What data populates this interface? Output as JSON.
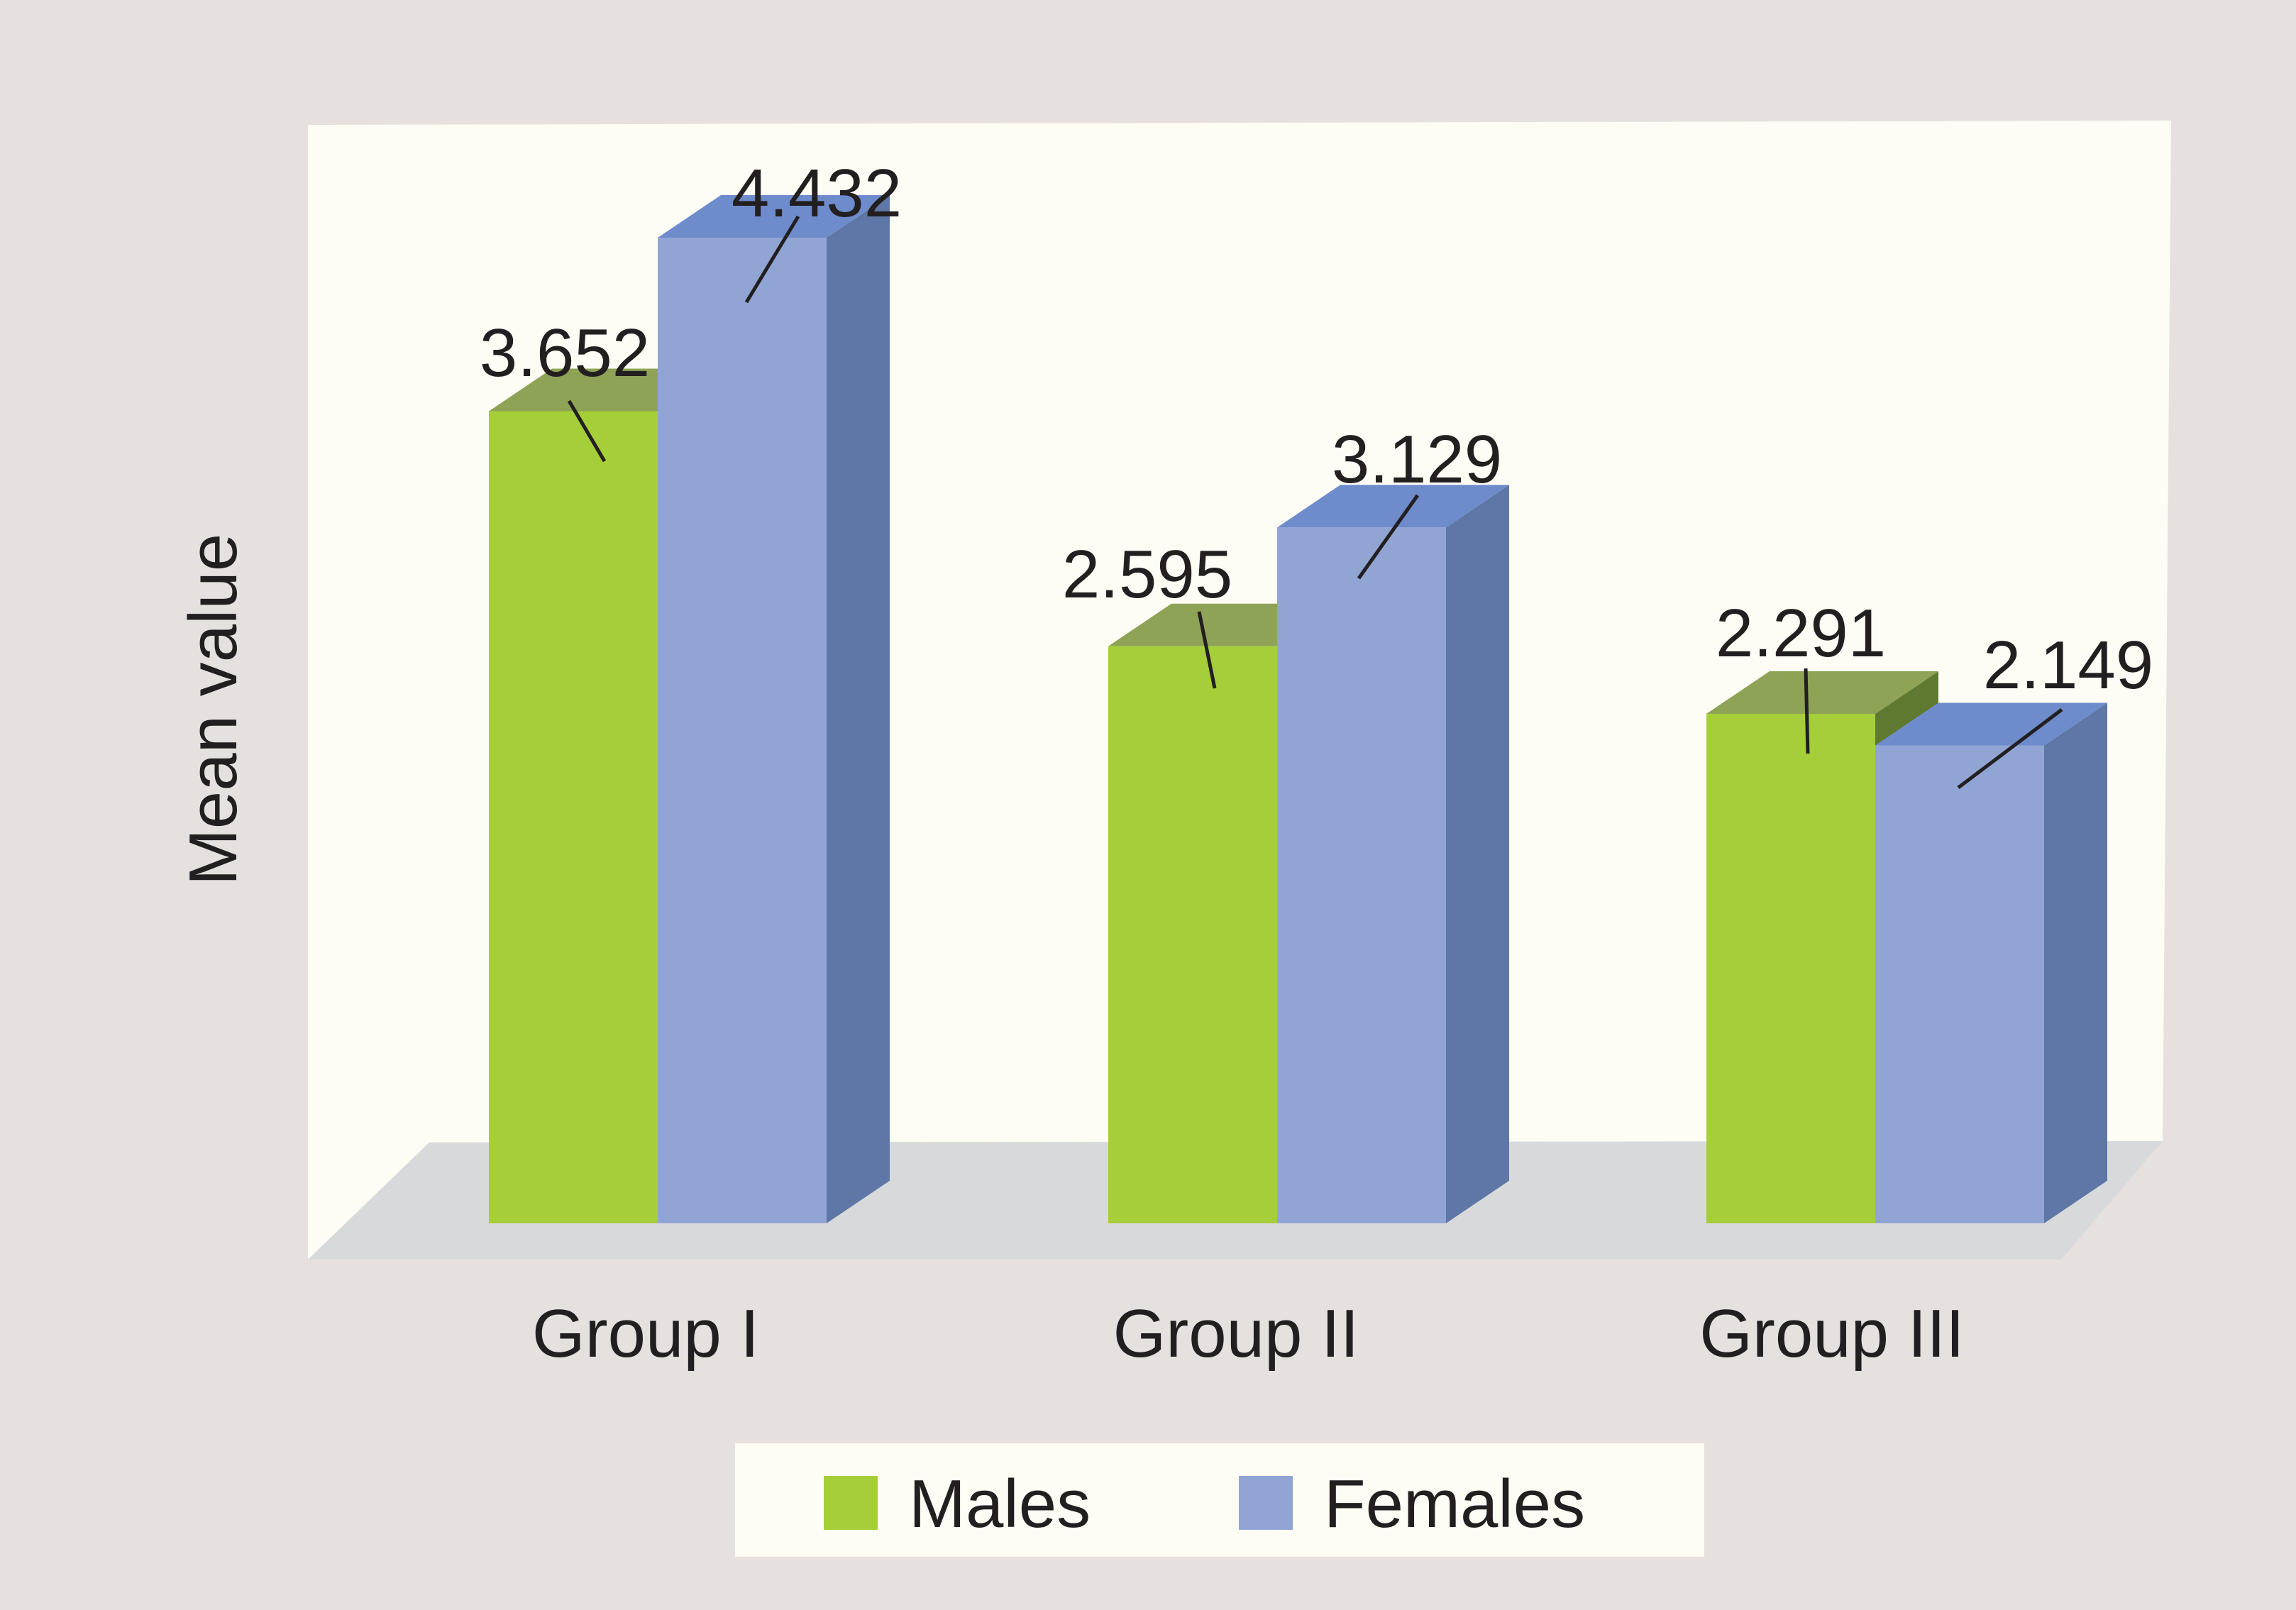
{
  "chart_data": {
    "type": "bar",
    "title": "",
    "xlabel": "",
    "ylabel": "Mean value",
    "categories": [
      "Group I",
      "Group II",
      "Group III"
    ],
    "series": [
      {
        "name": "Males",
        "values": [
          3.652,
          2.595,
          2.291
        ]
      },
      {
        "name": "Females",
        "values": [
          4.432,
          3.129,
          2.149
        ]
      }
    ],
    "value_labels": [
      [
        "3.652",
        "4.432"
      ],
      [
        "2.595",
        "3.129"
      ],
      [
        "2.291",
        "2.149"
      ]
    ],
    "ylim": [
      0,
      4.8
    ],
    "grid": false,
    "legend_position": "bottom",
    "style": "3d-clustered-column"
  },
  "colors": {
    "page_background": "#e6e1df",
    "plot_wall": "#fdfdf5",
    "plot_floor": "#d8d9da",
    "males_front": "#a6ce39",
    "males_top": "#8ea356",
    "males_side": "#5f7a30",
    "females_front": "#91a5d4",
    "females_top": "#6e8ccc",
    "females_side": "#5e77a6",
    "text": "#231f20"
  }
}
